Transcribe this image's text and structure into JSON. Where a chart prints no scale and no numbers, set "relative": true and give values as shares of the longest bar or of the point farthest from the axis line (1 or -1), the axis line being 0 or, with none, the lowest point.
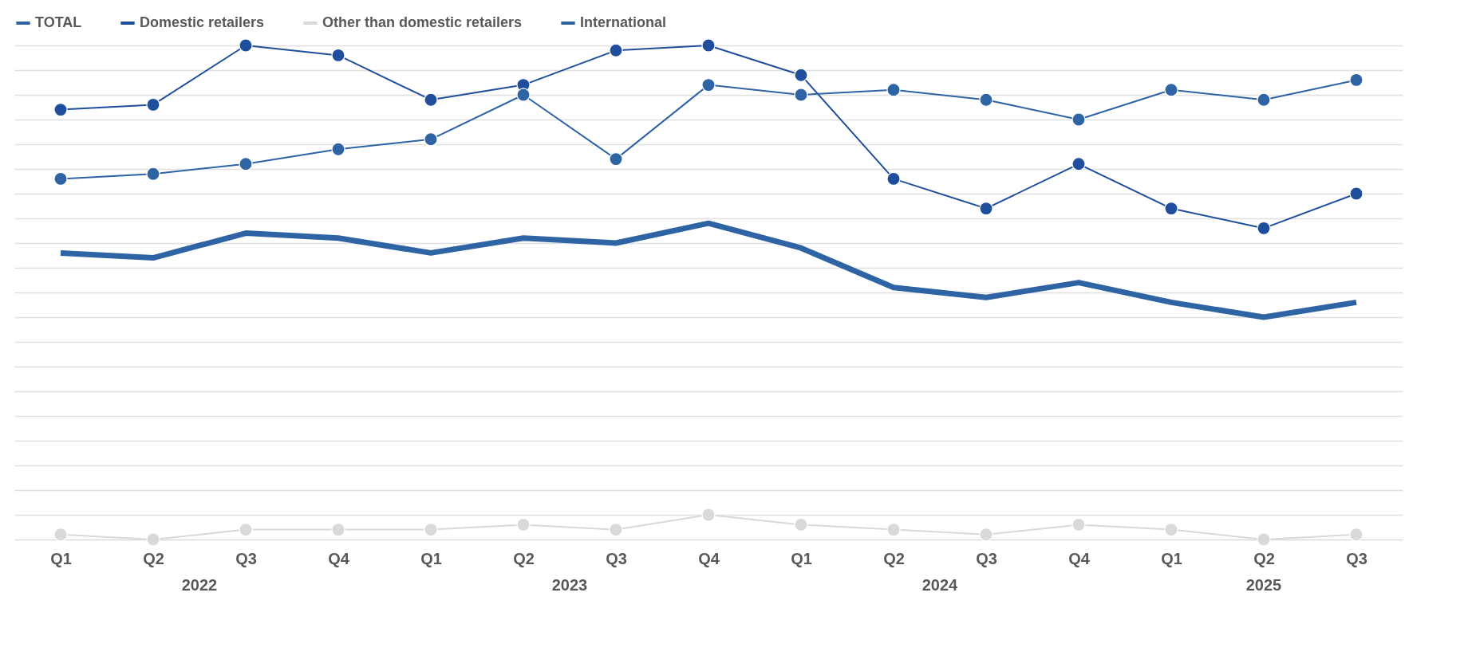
{
  "chart_data": {
    "type": "line",
    "relative": true,
    "grid": "y",
    "legend": "top left",
    "categories": [
      "Q1",
      "Q2",
      "Q3",
      "Q4",
      "Q1",
      "Q2",
      "Q3",
      "Q4",
      "Q1",
      "Q2",
      "Q3",
      "Q4",
      "Q1",
      "Q2",
      "Q3"
    ],
    "annotations": [
      "2022",
      "2023",
      "2024",
      "2025"
    ],
    "series": [
      {
        "name": "TOTAL",
        "color": "#2e63a4",
        "marker": "none",
        "values": [
          0.58,
          0.57,
          0.62,
          0.61,
          0.58,
          0.61,
          0.6,
          0.64,
          0.59,
          0.51,
          0.49,
          0.52,
          0.48,
          0.45,
          0.48
        ]
      },
      {
        "name": "Domestic retailers",
        "color": "#1f4e9c",
        "marker": "circle",
        "values": [
          0.87,
          0.88,
          1.0,
          0.98,
          0.89,
          0.92,
          0.99,
          1.0,
          0.94,
          0.73,
          0.67,
          0.76,
          0.67,
          0.63,
          0.7
        ]
      },
      {
        "name": "Other than domestic retailers",
        "color": "#d9d9d9",
        "marker": "circle",
        "values": [
          0.01,
          0,
          0.02,
          0.02,
          0.02,
          0.03,
          0.02,
          0.05,
          0.03,
          0.02,
          0.01,
          0.03,
          0.02,
          0,
          0.01
        ]
      },
      {
        "name": "International",
        "color": "#2e63a4",
        "marker": "circle",
        "values": [
          0.73,
          0.74,
          0.76,
          0.79,
          0.81,
          0.9,
          0.77,
          0.92,
          0.9,
          0.91,
          0.89,
          0.85,
          0.91,
          0.89,
          0.93
        ]
      }
    ]
  }
}
